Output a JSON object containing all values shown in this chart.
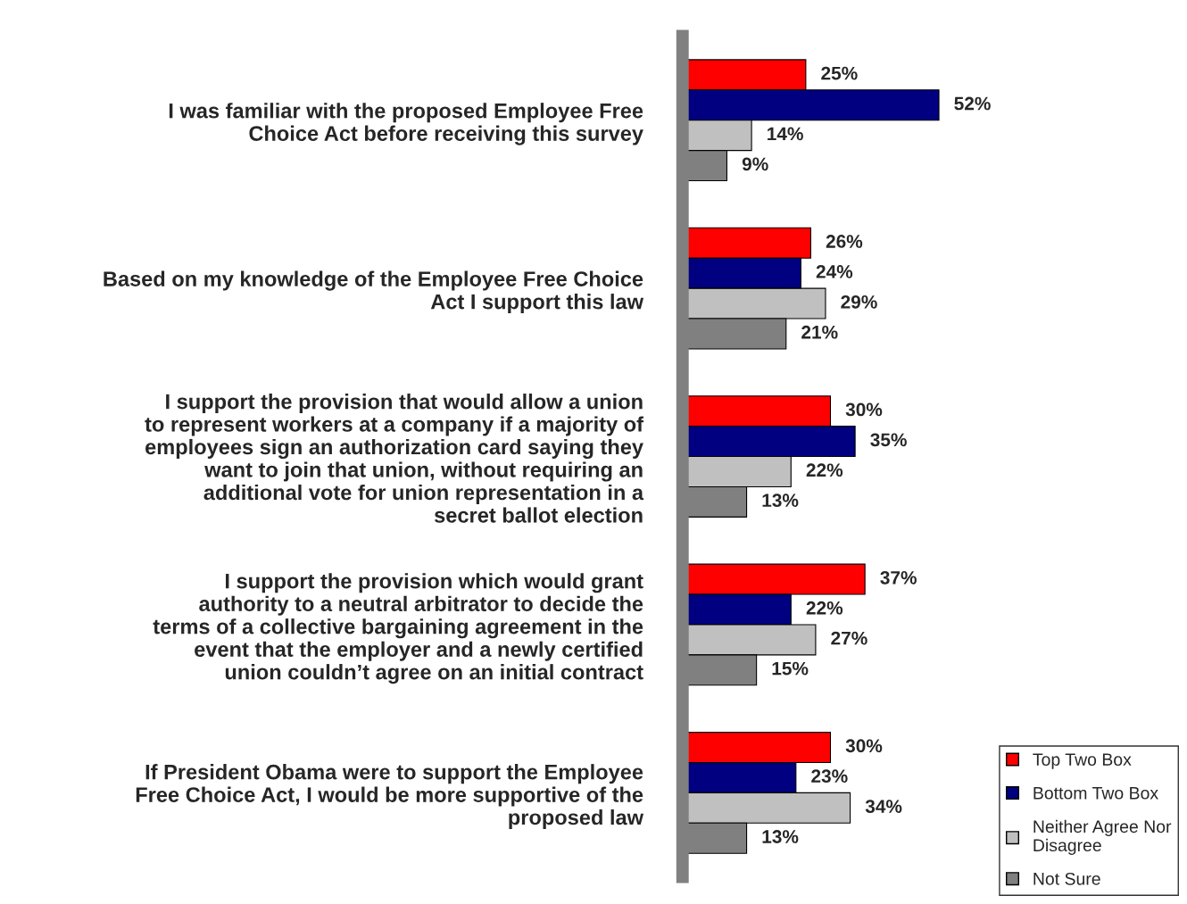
{
  "chart_data": {
    "type": "bar",
    "orientation": "horizontal",
    "categories": [
      "I was familiar with the proposed Employee Free Choice Act before receiving this survey",
      "Based on my knowledge of the Employee Free Choice Act I support this law",
      "I support the provision that would allow a union to represent workers at a company if a majority of employees sign an authorization card saying they want to join that union, without requiring an additional vote for union representation in a secret ballot election",
      "I support the provision which would grant authority to a neutral arbitrator to decide the terms of a collective bargaining agreement in the event that the employer and a newly certified union couldn’t agree on an initial contract",
      "If President Obama were to support the Employee Free Choice Act, I would be more supportive of the proposed law"
    ],
    "series": [
      {
        "name": "Top Two Box",
        "color": "#ff0000",
        "values": [
          25,
          26,
          30,
          37,
          30
        ],
        "value_labels": [
          "25%",
          "26%",
          "30%",
          "37%",
          "30%"
        ]
      },
      {
        "name": "Bottom Two Box",
        "color": "#000080",
        "values": [
          52,
          24,
          35,
          22,
          23
        ],
        "value_labels": [
          "52%",
          "24%",
          "35%",
          "22%",
          "23%"
        ]
      },
      {
        "name": "Neither Agree Nor Disagree",
        "color": "#c0c0c0",
        "values": [
          14,
          29,
          22,
          27,
          34
        ],
        "value_labels": [
          "14%",
          "29%",
          "22%",
          "27%",
          "34%"
        ]
      },
      {
        "name": "Not Sure",
        "color": "#808080",
        "values": [
          9,
          21,
          13,
          15,
          13
        ],
        "value_labels": [
          "9%",
          "21%",
          "13%",
          "15%",
          "13%"
        ]
      }
    ],
    "legend": "bottom right",
    "tick_labels": "y",
    "grid": false
  }
}
